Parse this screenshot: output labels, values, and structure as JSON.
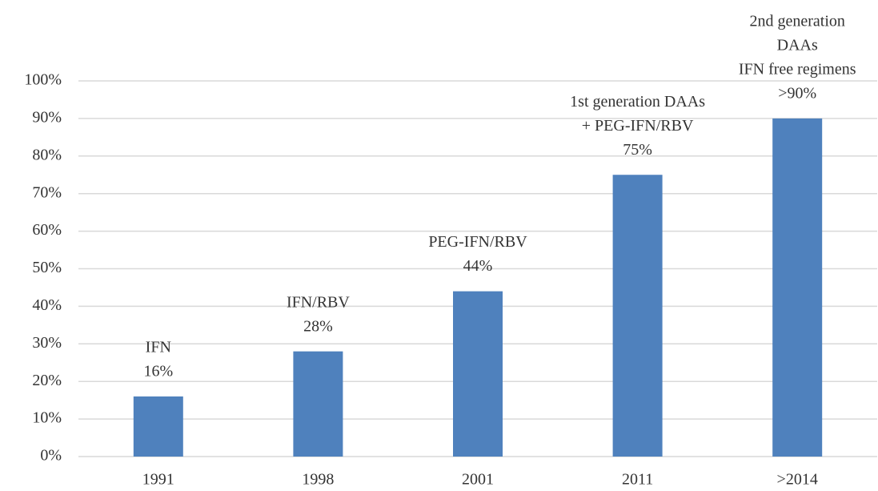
{
  "chart_data": {
    "type": "bar",
    "categories": [
      "1991",
      "1998",
      "2001",
      "2011",
      ">2014"
    ],
    "values": [
      16,
      28,
      44,
      75,
      90
    ],
    "value_labels": [
      "16%",
      "28%",
      "44%",
      "75%",
      ">90%"
    ],
    "annotations": [
      [
        "IFN"
      ],
      [
        "IFN/RBV"
      ],
      [
        "PEG-IFN/RBV"
      ],
      [
        "1st generation DAAs",
        "+ PEG-IFN/RBV"
      ],
      [
        "2nd generation",
        "DAAs",
        "IFN free regimens"
      ]
    ],
    "color": "#4f81bd",
    "ylim": [
      0,
      100
    ],
    "yticks": [
      {
        "value": 0,
        "label": "0%"
      },
      {
        "value": 10,
        "label": "10%"
      },
      {
        "value": 20,
        "label": "20%"
      },
      {
        "value": 30,
        "label": "30%"
      },
      {
        "value": 40,
        "label": "40%"
      },
      {
        "value": 50,
        "label": "50%"
      },
      {
        "value": 60,
        "label": "60%"
      },
      {
        "value": 70,
        "label": "70%"
      },
      {
        "value": 80,
        "label": "80%"
      },
      {
        "value": 90,
        "label": "90%"
      },
      {
        "value": 100,
        "label": "100%"
      }
    ],
    "grid": true
  }
}
